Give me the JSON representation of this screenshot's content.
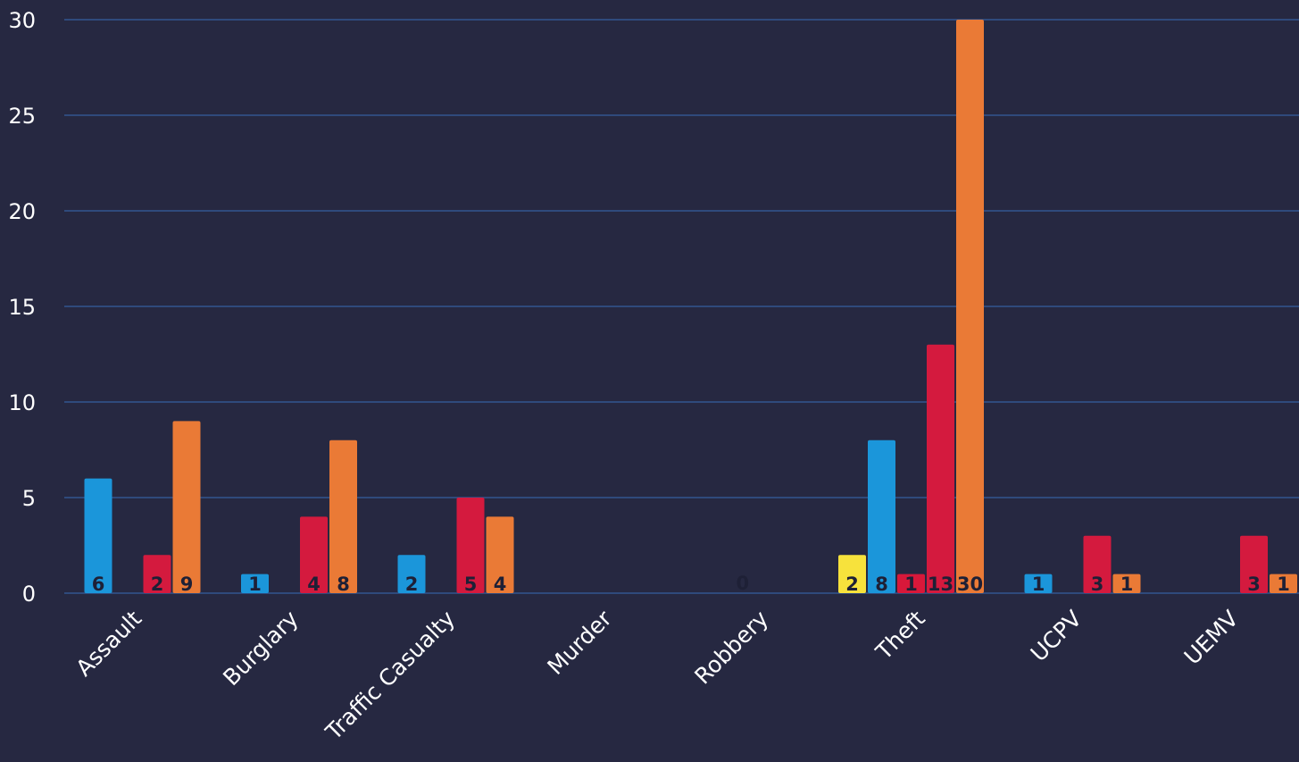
{
  "chart_data": {
    "type": "bar",
    "title": "",
    "xlabel": "",
    "ylabel": "",
    "ylim": [
      0,
      30
    ],
    "yticks": [
      0,
      5,
      10,
      15,
      20,
      25,
      30
    ],
    "ytick_labels": [
      "0",
      "5",
      "10",
      "15",
      "20",
      "25",
      "30"
    ],
    "grid": true,
    "legend": "none",
    "categories": [
      "Assault",
      "Burglary",
      "Traffic Casualty",
      "Murder",
      "Robbery",
      "Theft",
      "UCPV",
      "UEMV"
    ],
    "series": [
      {
        "color": "#f7e23c",
        "values": [
          null,
          null,
          null,
          null,
          null,
          2,
          null,
          null
        ]
      },
      {
        "color": "#1b96da",
        "values": [
          6,
          1,
          2,
          null,
          null,
          8,
          1,
          null
        ]
      },
      {
        "color": "#d8183a",
        "values": [
          null,
          null,
          null,
          null,
          null,
          1,
          null,
          null
        ]
      },
      {
        "color": "#d41a3e",
        "values": [
          2,
          4,
          5,
          null,
          null,
          13,
          3,
          3
        ]
      },
      {
        "color": "#ea7a36",
        "values": [
          9,
          8,
          4,
          null,
          null,
          30,
          1,
          1
        ]
      }
    ],
    "extra_labels": [
      {
        "category": "Robbery",
        "text": "0"
      }
    ]
  },
  "colors": {
    "background": "#262841",
    "gridline": "#2f4a7c",
    "text": "#ffffff",
    "bar_label": "#1e2036"
  }
}
